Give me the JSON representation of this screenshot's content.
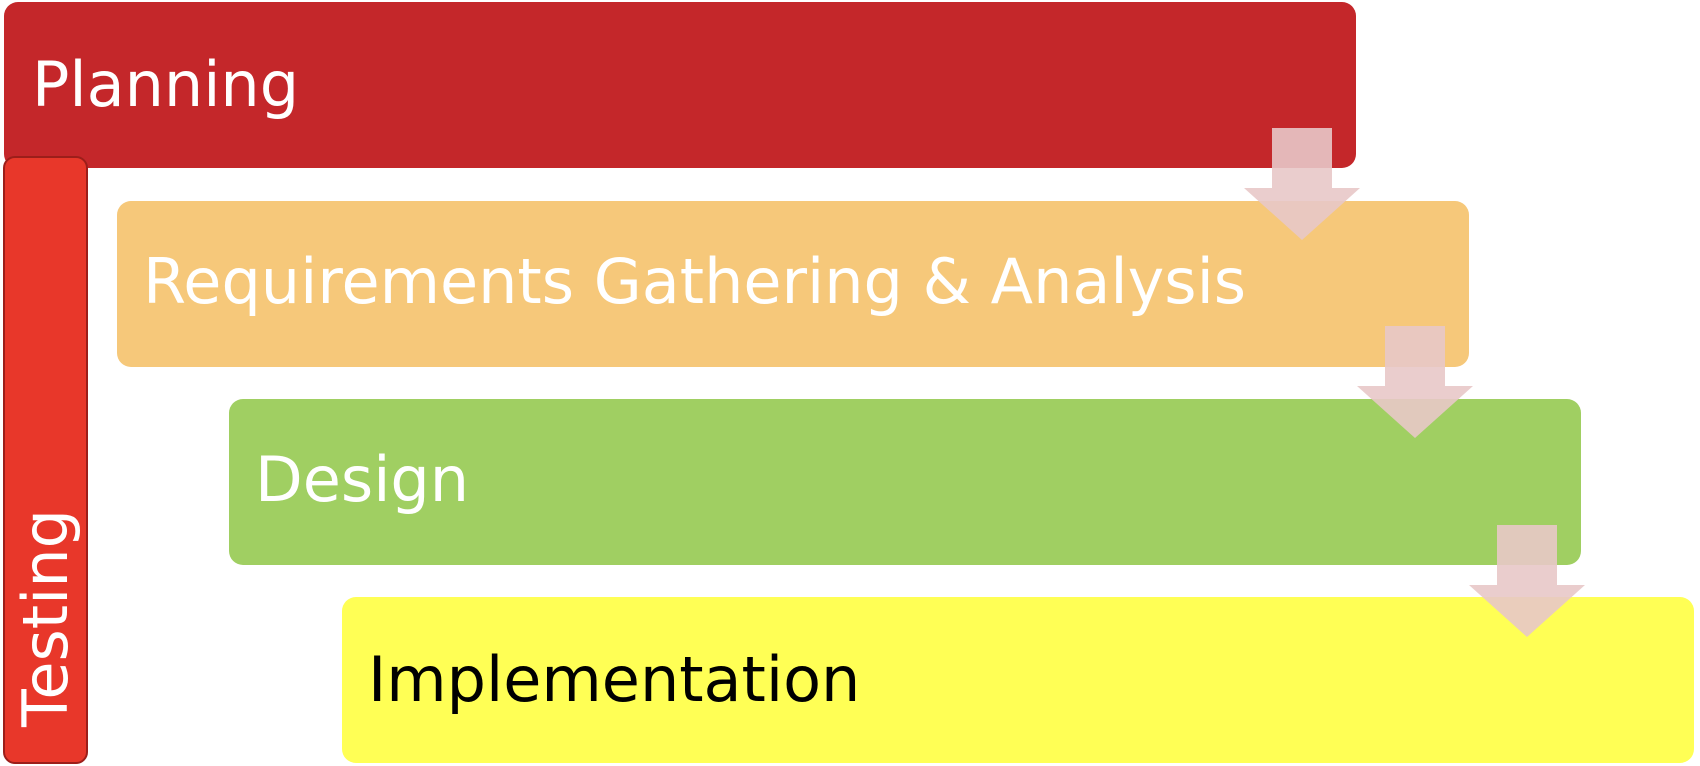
{
  "diagram": {
    "stages": {
      "planning": {
        "label": "Planning",
        "color": "#c4272a",
        "text_color": "#ffffff"
      },
      "requirements": {
        "label": "Requirements Gathering & Analysis",
        "color": "#f6c87a",
        "text_color": "#ffffff"
      },
      "design": {
        "label": "Design",
        "color": "#a0cf62",
        "text_color": "#ffffff"
      },
      "implementation": {
        "label": "Implementation",
        "color": "#ffff55",
        "text_color": "#000000"
      }
    },
    "testing": {
      "label": "Testing",
      "color": "#e8372a"
    },
    "arrow_color": "#e8c8c8"
  }
}
